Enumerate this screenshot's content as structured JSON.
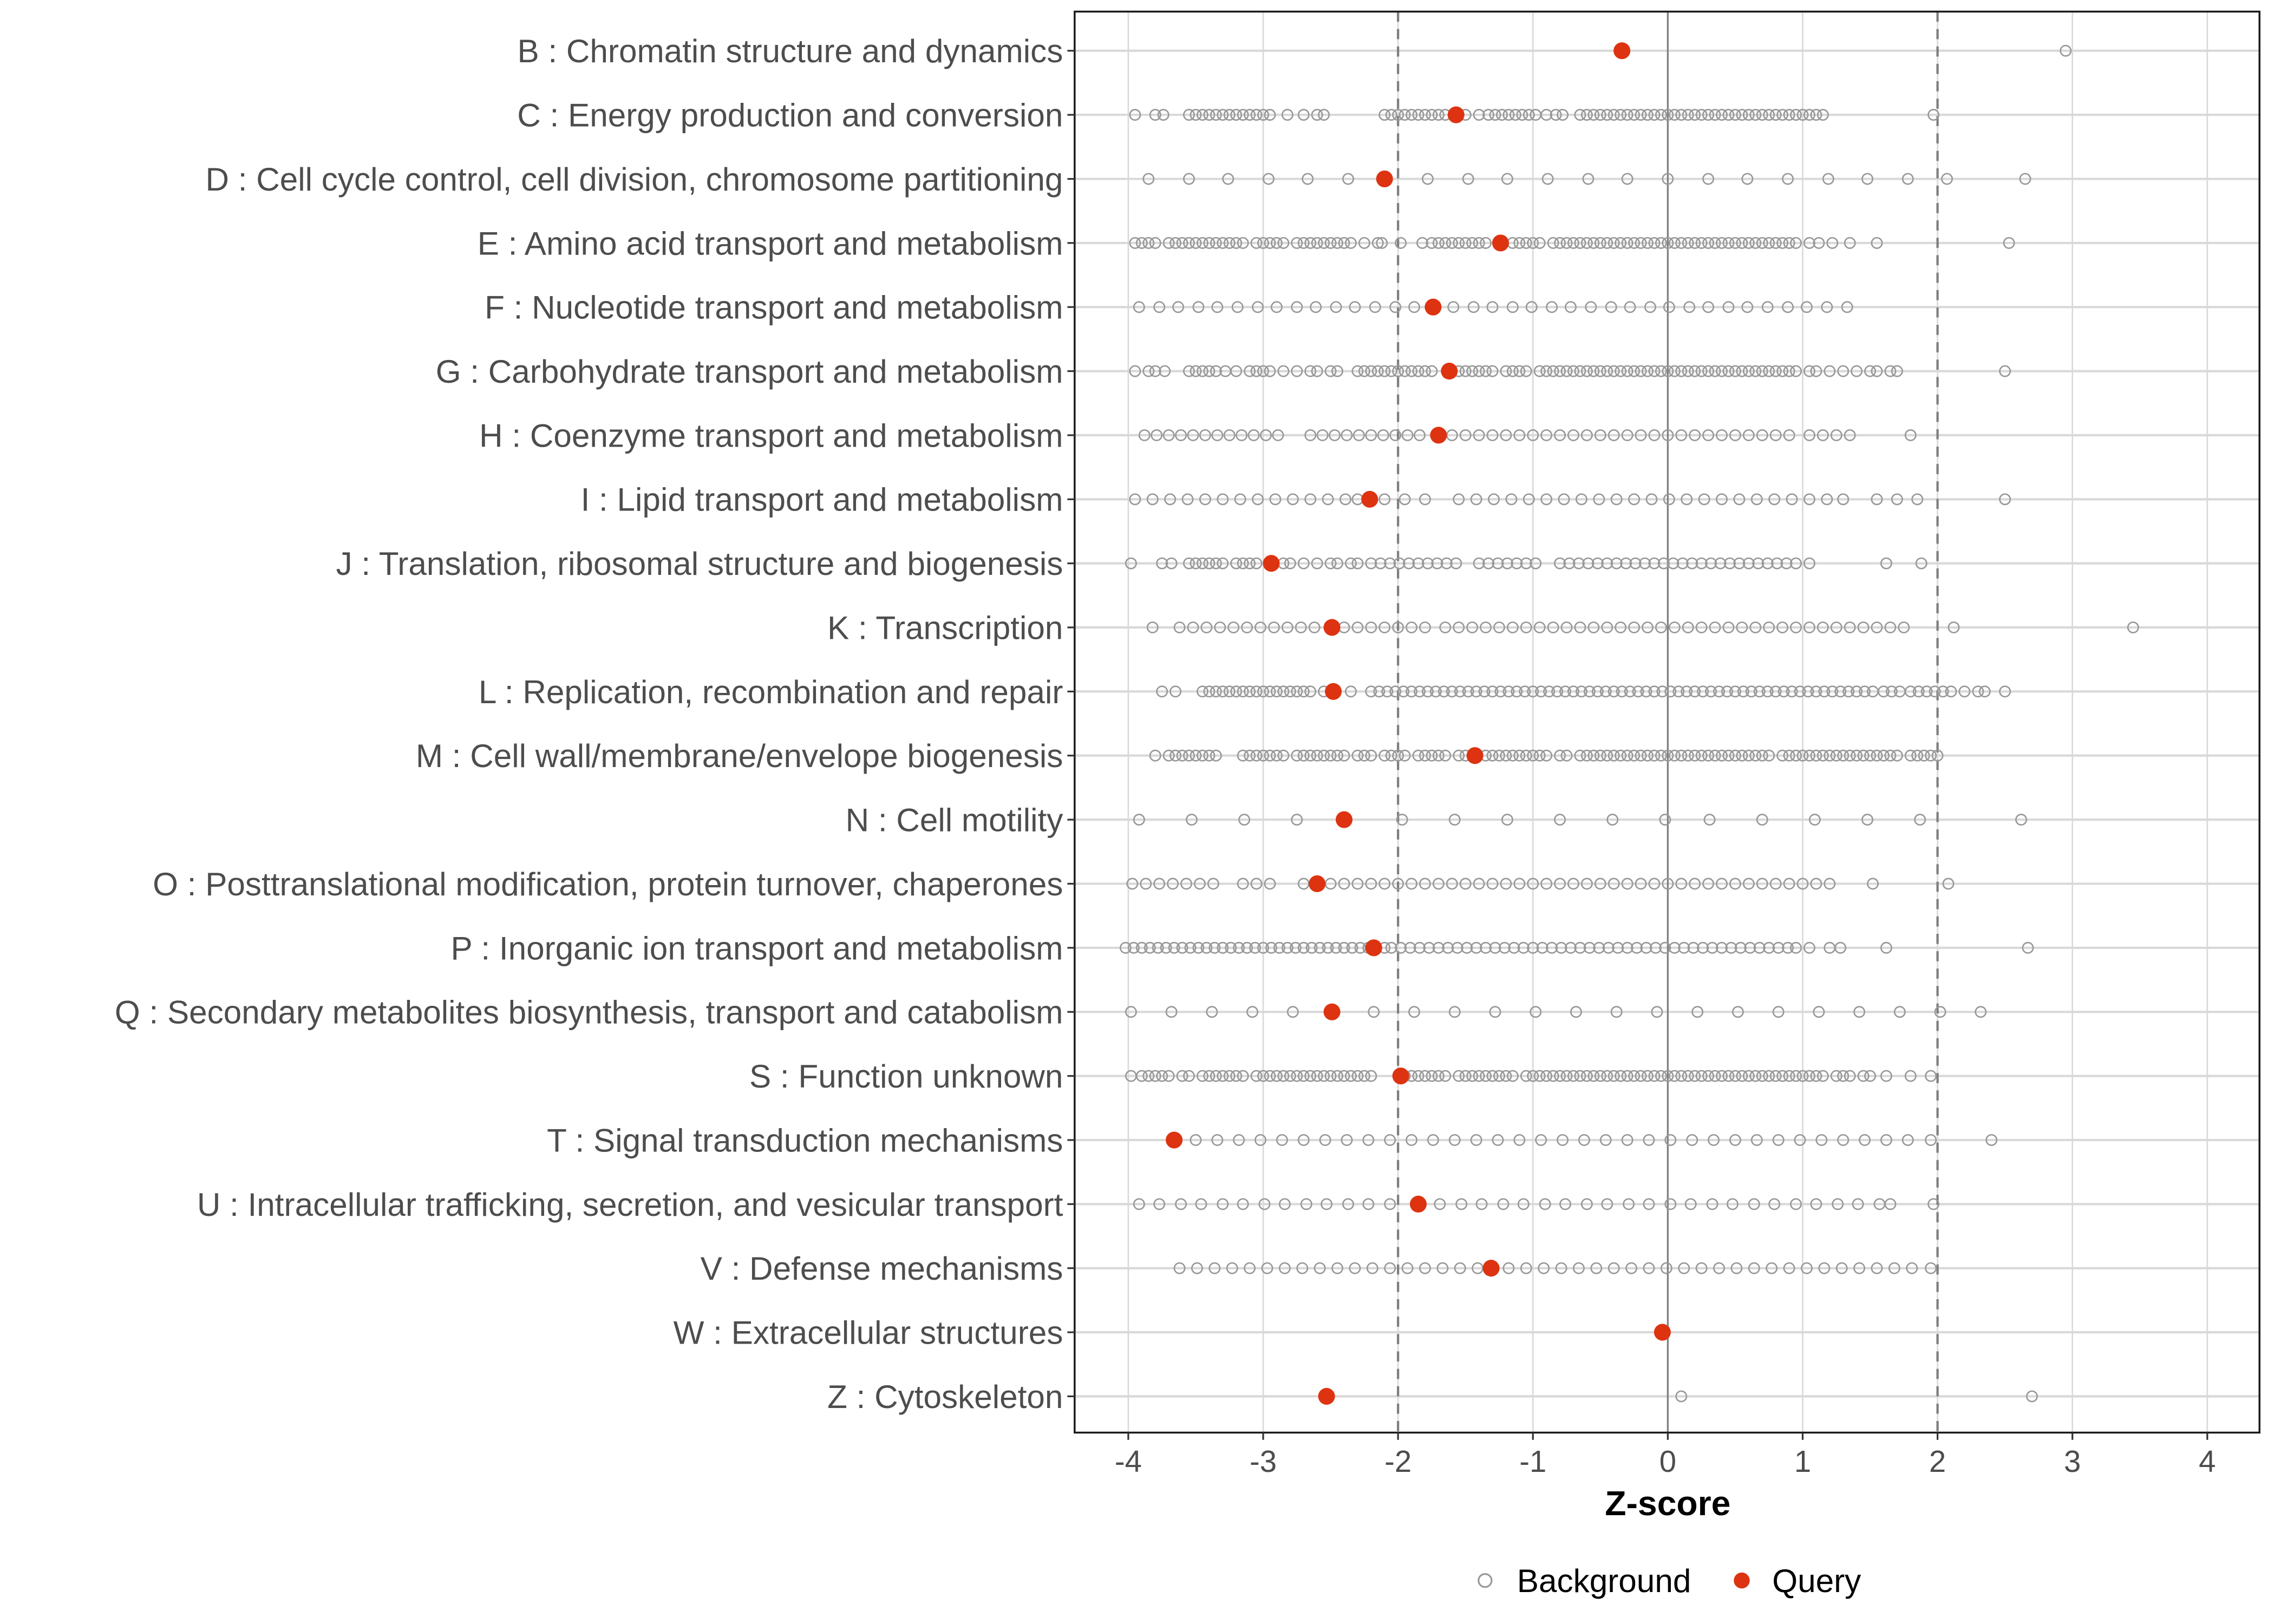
{
  "chart_data": {
    "type": "scatter",
    "title": "",
    "xlabel": "Z-score",
    "ylabel": "",
    "xlim": [
      -4.4,
      4.4
    ],
    "xticks": [
      -4,
      -3,
      -2,
      -1,
      0,
      1,
      2,
      3,
      4
    ],
    "xtick_labels": [
      "-4",
      "-3",
      "-2",
      "-1",
      "0",
      "1",
      "2",
      "3",
      "4"
    ],
    "reference_lines": {
      "solid": [
        0
      ],
      "dashed": [
        -2,
        2
      ]
    },
    "grid": true,
    "legend": {
      "position": "bottom",
      "entries": [
        "Background",
        "Query"
      ]
    },
    "colors": {
      "background": "#999999",
      "query": "#dd3311",
      "grid": "#d9d9d9",
      "reference": "#7f7f7f"
    },
    "categories": [
      "B : Chromatin structure and dynamics",
      "C : Energy production and conversion",
      "D : Cell cycle control, cell division, chromosome partitioning",
      "E : Amino acid transport and metabolism",
      "F : Nucleotide transport and metabolism",
      "G : Carbohydrate transport and metabolism",
      "H : Coenzyme transport and metabolism",
      "I : Lipid transport and metabolism",
      "J : Translation, ribosomal structure and biogenesis",
      "K : Transcription",
      "L : Replication, recombination and repair",
      "M : Cell wall/membrane/envelope biogenesis",
      "N : Cell motility",
      "O : Posttranslational modification, protein turnover, chaperones",
      "P : Inorganic ion transport and metabolism",
      "Q : Secondary metabolites biosynthesis, transport and catabolism",
      "S : Function unknown",
      "T : Signal transduction mechanisms",
      "U : Intracellular trafficking, secretion, and vesicular transport",
      "V : Defense mechanisms",
      "W : Extracellular structures",
      "Z : Cytoskeleton"
    ],
    "query": [
      -0.34,
      -1.57,
      -2.1,
      -1.24,
      -1.74,
      -1.62,
      -1.7,
      -2.21,
      -2.94,
      -2.49,
      -2.48,
      -1.43,
      -2.4,
      -2.6,
      -2.18,
      -2.49,
      -1.98,
      -3.66,
      -1.85,
      -1.31,
      -0.04,
      -2.53
    ],
    "background": [
      [
        2.95
      ],
      [
        -3.95,
        -3.8,
        -3.74,
        -3.55,
        -3.5,
        -3.45,
        -3.4,
        -3.35,
        -3.3,
        -3.25,
        -3.2,
        -3.15,
        -3.1,
        -3.05,
        -3.0,
        -2.95,
        -2.82,
        -2.7,
        -2.6,
        -2.55,
        -2.1,
        -2.05,
        -2.0,
        -1.95,
        -1.9,
        -1.85,
        -1.8,
        -1.75,
        -1.7,
        -1.65,
        -1.5,
        -1.4,
        -1.33,
        -1.28,
        -1.23,
        -1.18,
        -1.13,
        -1.08,
        -1.03,
        -0.98,
        -0.9,
        -0.83,
        -0.78,
        -0.65,
        -0.6,
        -0.55,
        -0.5,
        -0.45,
        -0.4,
        -0.35,
        -0.3,
        -0.25,
        -0.2,
        -0.15,
        -0.1,
        -0.05,
        0,
        0.05,
        0.1,
        0.15,
        0.2,
        0.25,
        0.3,
        0.35,
        0.4,
        0.45,
        0.5,
        0.55,
        0.6,
        0.65,
        0.7,
        0.75,
        0.8,
        0.85,
        0.9,
        0.95,
        1.0,
        1.05,
        1.1,
        1.15,
        1.97
      ],
      [
        -3.85,
        -3.55,
        -3.26,
        -2.96,
        -2.67,
        -2.37,
        -1.78,
        -1.48,
        -1.19,
        -0.89,
        -0.59,
        -0.3,
        0,
        0.3,
        0.59,
        0.89,
        1.19,
        1.48,
        1.78,
        2.07,
        2.65
      ],
      [
        -3.95,
        -3.9,
        -3.85,
        -3.8,
        -3.7,
        -3.65,
        -3.6,
        -3.55,
        -3.5,
        -3.45,
        -3.4,
        -3.35,
        -3.3,
        -3.25,
        -3.2,
        -3.15,
        -3.05,
        -3.0,
        -2.95,
        -2.9,
        -2.85,
        -2.75,
        -2.7,
        -2.65,
        -2.6,
        -2.55,
        -2.5,
        -2.45,
        -2.4,
        -2.35,
        -2.25,
        -2.15,
        -2.12,
        -1.98,
        -1.82,
        -1.75,
        -1.7,
        -1.65,
        -1.6,
        -1.55,
        -1.5,
        -1.45,
        -1.4,
        -1.35,
        -1.15,
        -1.1,
        -1.05,
        -1.0,
        -0.95,
        -0.85,
        -0.8,
        -0.75,
        -0.7,
        -0.65,
        -0.6,
        -0.55,
        -0.5,
        -0.45,
        -0.4,
        -0.35,
        -0.3,
        -0.25,
        -0.2,
        -0.15,
        -0.1,
        -0.05,
        0,
        0.05,
        0.1,
        0.15,
        0.2,
        0.25,
        0.3,
        0.35,
        0.4,
        0.45,
        0.5,
        0.55,
        0.6,
        0.65,
        0.7,
        0.75,
        0.8,
        0.85,
        0.9,
        0.95,
        1.05,
        1.12,
        1.22,
        1.35,
        1.55,
        2.53
      ],
      [
        -3.92,
        -3.77,
        -3.63,
        -3.48,
        -3.34,
        -3.19,
        -3.04,
        -2.9,
        -2.75,
        -2.61,
        -2.46,
        -2.32,
        -2.17,
        -2.02,
        -1.88,
        -1.59,
        -1.44,
        -1.3,
        -1.15,
        -1.01,
        -0.86,
        -0.72,
        -0.57,
        -0.42,
        -0.28,
        -0.13,
        0.01,
        0.16,
        0.3,
        0.45,
        0.59,
        0.74,
        0.89,
        1.03,
        1.18,
        1.33
      ],
      [
        -3.95,
        -3.85,
        -3.8,
        -3.73,
        -3.55,
        -3.5,
        -3.45,
        -3.4,
        -3.35,
        -3.28,
        -3.2,
        -3.1,
        -3.05,
        -3.0,
        -2.95,
        -2.85,
        -2.75,
        -2.65,
        -2.6,
        -2.5,
        -2.45,
        -2.3,
        -2.25,
        -2.2,
        -2.15,
        -2.1,
        -2.05,
        -2.0,
        -1.95,
        -1.9,
        -1.85,
        -1.8,
        -1.75,
        -1.55,
        -1.5,
        -1.45,
        -1.4,
        -1.35,
        -1.3,
        -1.2,
        -1.15,
        -1.1,
        -1.05,
        -0.95,
        -0.9,
        -0.85,
        -0.8,
        -0.75,
        -0.7,
        -0.65,
        -0.6,
        -0.55,
        -0.5,
        -0.45,
        -0.4,
        -0.35,
        -0.3,
        -0.25,
        -0.2,
        -0.15,
        -0.1,
        -0.05,
        0,
        0.05,
        0.1,
        0.15,
        0.2,
        0.25,
        0.3,
        0.35,
        0.4,
        0.45,
        0.5,
        0.55,
        0.6,
        0.65,
        0.7,
        0.75,
        0.8,
        0.85,
        0.9,
        0.95,
        1.05,
        1.1,
        1.2,
        1.3,
        1.4,
        1.5,
        1.55,
        1.65,
        1.7,
        2.5
      ],
      [
        -3.88,
        -3.79,
        -3.7,
        -3.61,
        -3.52,
        -3.43,
        -3.34,
        -3.25,
        -3.16,
        -3.07,
        -2.98,
        -2.89,
        -2.65,
        -2.56,
        -2.47,
        -2.38,
        -2.29,
        -2.2,
        -2.11,
        -2.02,
        -1.93,
        -1.84,
        -1.6,
        -1.5,
        -1.4,
        -1.3,
        -1.2,
        -1.1,
        -1.0,
        -0.9,
        -0.8,
        -0.7,
        -0.6,
        -0.5,
        -0.4,
        -0.3,
        -0.2,
        -0.1,
        0,
        0.1,
        0.2,
        0.3,
        0.4,
        0.5,
        0.6,
        0.7,
        0.8,
        0.9,
        1.05,
        1.15,
        1.25,
        1.35,
        1.8
      ],
      [
        -3.95,
        -3.82,
        -3.69,
        -3.56,
        -3.43,
        -3.3,
        -3.17,
        -3.04,
        -2.91,
        -2.78,
        -2.65,
        -2.52,
        -2.39,
        -2.3,
        -2.1,
        -1.95,
        -1.8,
        -1.55,
        -1.42,
        -1.29,
        -1.16,
        -1.03,
        -0.9,
        -0.77,
        -0.64,
        -0.51,
        -0.38,
        -0.25,
        -0.12,
        0.01,
        0.14,
        0.27,
        0.4,
        0.53,
        0.66,
        0.79,
        0.92,
        1.05,
        1.18,
        1.3,
        1.55,
        1.7,
        1.85,
        2.5
      ],
      [
        -3.98,
        -3.75,
        -3.68,
        -3.55,
        -3.5,
        -3.45,
        -3.4,
        -3.35,
        -3.3,
        -3.2,
        -3.15,
        -3.1,
        -3.05,
        -2.85,
        -2.8,
        -2.7,
        -2.6,
        -2.5,
        -2.45,
        -2.35,
        -2.3,
        -2.2,
        -2.13,
        -2.06,
        -1.99,
        -1.92,
        -1.85,
        -1.78,
        -1.71,
        -1.64,
        -1.57,
        -1.4,
        -1.33,
        -1.26,
        -1.19,
        -1.12,
        -1.05,
        -0.98,
        -0.8,
        -0.73,
        -0.66,
        -0.59,
        -0.52,
        -0.45,
        -0.38,
        -0.31,
        -0.24,
        -0.17,
        -0.1,
        -0.03,
        0.04,
        0.11,
        0.18,
        0.25,
        0.32,
        0.39,
        0.46,
        0.53,
        0.6,
        0.67,
        0.74,
        0.81,
        0.88,
        0.95,
        1.05,
        1.62,
        1.88
      ],
      [
        -3.82,
        -3.62,
        -3.52,
        -3.42,
        -3.32,
        -3.22,
        -3.12,
        -3.02,
        -2.92,
        -2.82,
        -2.72,
        -2.62,
        -2.4,
        -2.3,
        -2.2,
        -2.1,
        -2.0,
        -1.9,
        -1.8,
        -1.65,
        -1.55,
        -1.45,
        -1.35,
        -1.25,
        -1.15,
        -1.05,
        -0.95,
        -0.85,
        -0.75,
        -0.65,
        -0.55,
        -0.45,
        -0.35,
        -0.25,
        -0.15,
        -0.05,
        0.05,
        0.15,
        0.25,
        0.35,
        0.45,
        0.55,
        0.65,
        0.75,
        0.85,
        0.95,
        1.05,
        1.15,
        1.25,
        1.35,
        1.45,
        1.55,
        1.65,
        1.75,
        2.12,
        3.45
      ],
      [
        -3.75,
        -3.65,
        -3.45,
        -3.4,
        -3.35,
        -3.3,
        -3.25,
        -3.2,
        -3.15,
        -3.1,
        -3.05,
        -3.0,
        -2.95,
        -2.9,
        -2.85,
        -2.8,
        -2.75,
        -2.7,
        -2.65,
        -2.55,
        -2.35,
        -2.2,
        -2.14,
        -2.08,
        -2.02,
        -1.96,
        -1.9,
        -1.84,
        -1.78,
        -1.72,
        -1.66,
        -1.6,
        -1.54,
        -1.48,
        -1.42,
        -1.36,
        -1.3,
        -1.24,
        -1.18,
        -1.12,
        -1.06,
        -1.0,
        -0.94,
        -0.88,
        -0.82,
        -0.76,
        -0.7,
        -0.64,
        -0.58,
        -0.52,
        -0.46,
        -0.4,
        -0.34,
        -0.28,
        -0.22,
        -0.16,
        -0.1,
        -0.04,
        0.02,
        0.08,
        0.14,
        0.2,
        0.26,
        0.32,
        0.38,
        0.44,
        0.5,
        0.56,
        0.62,
        0.68,
        0.74,
        0.8,
        0.86,
        0.92,
        0.98,
        1.04,
        1.1,
        1.16,
        1.22,
        1.28,
        1.34,
        1.4,
        1.46,
        1.52,
        1.6,
        1.66,
        1.72,
        1.8,
        1.86,
        1.92,
        1.98,
        2.04,
        2.1,
        2.2,
        2.3,
        2.35,
        2.5
      ],
      [
        -3.8,
        -3.7,
        -3.65,
        -3.6,
        -3.55,
        -3.5,
        -3.45,
        -3.4,
        -3.35,
        -3.15,
        -3.1,
        -3.05,
        -3.0,
        -2.95,
        -2.9,
        -2.85,
        -2.75,
        -2.7,
        -2.65,
        -2.6,
        -2.55,
        -2.5,
        -2.45,
        -2.4,
        -2.3,
        -2.25,
        -2.2,
        -2.1,
        -2.05,
        -2.0,
        -1.95,
        -1.85,
        -1.8,
        -1.75,
        -1.7,
        -1.65,
        -1.55,
        -1.5,
        -1.35,
        -1.3,
        -1.25,
        -1.2,
        -1.15,
        -1.1,
        -1.05,
        -1.0,
        -0.95,
        -0.9,
        -0.8,
        -0.75,
        -0.65,
        -0.6,
        -0.55,
        -0.5,
        -0.45,
        -0.4,
        -0.35,
        -0.3,
        -0.25,
        -0.2,
        -0.15,
        -0.1,
        -0.05,
        0,
        0.05,
        0.1,
        0.15,
        0.2,
        0.25,
        0.3,
        0.35,
        0.4,
        0.45,
        0.5,
        0.55,
        0.6,
        0.65,
        0.7,
        0.75,
        0.85,
        0.9,
        0.95,
        1.0,
        1.05,
        1.1,
        1.15,
        1.2,
        1.25,
        1.3,
        1.35,
        1.4,
        1.45,
        1.5,
        1.55,
        1.6,
        1.65,
        1.7,
        1.8,
        1.85,
        1.9,
        1.95,
        2.0
      ],
      [
        -3.92,
        -3.53,
        -3.14,
        -2.75,
        -1.97,
        -1.58,
        -1.19,
        -0.8,
        -0.41,
        -0.02,
        0.31,
        0.7,
        1.09,
        1.48,
        1.87,
        2.62
      ],
      [
        -3.97,
        -3.87,
        -3.77,
        -3.67,
        -3.57,
        -3.47,
        -3.37,
        -3.15,
        -3.05,
        -2.95,
        -2.7,
        -2.5,
        -2.4,
        -2.3,
        -2.2,
        -2.1,
        -2.0,
        -1.9,
        -1.8,
        -1.7,
        -1.6,
        -1.5,
        -1.4,
        -1.3,
        -1.2,
        -1.1,
        -1.0,
        -0.9,
        -0.8,
        -0.7,
        -0.6,
        -0.5,
        -0.4,
        -0.3,
        -0.2,
        -0.1,
        0,
        0.1,
        0.2,
        0.3,
        0.4,
        0.5,
        0.6,
        0.7,
        0.8,
        0.9,
        1.0,
        1.1,
        1.2,
        1.52,
        2.08
      ],
      [
        -4.02,
        -3.96,
        -3.9,
        -3.84,
        -3.78,
        -3.72,
        -3.66,
        -3.6,
        -3.54,
        -3.48,
        -3.42,
        -3.36,
        -3.3,
        -3.24,
        -3.18,
        -3.12,
        -3.06,
        -3.0,
        -2.94,
        -2.88,
        -2.82,
        -2.76,
        -2.7,
        -2.64,
        -2.58,
        -2.52,
        -2.46,
        -2.4,
        -2.34,
        -2.28,
        -2.22,
        -2.1,
        -2.05,
        -1.98,
        -1.91,
        -1.84,
        -1.77,
        -1.7,
        -1.63,
        -1.56,
        -1.49,
        -1.42,
        -1.35,
        -1.28,
        -1.21,
        -1.14,
        -1.07,
        -1.0,
        -0.93,
        -0.86,
        -0.79,
        -0.72,
        -0.65,
        -0.58,
        -0.51,
        -0.44,
        -0.37,
        -0.3,
        -0.23,
        -0.16,
        -0.09,
        -0.02,
        0.05,
        0.12,
        0.19,
        0.26,
        0.33,
        0.4,
        0.47,
        0.54,
        0.61,
        0.68,
        0.75,
        0.82,
        0.89,
        0.95,
        1.05,
        1.2,
        1.28,
        1.62,
        2.67
      ],
      [
        -3.98,
        -3.68,
        -3.38,
        -3.08,
        -2.78,
        -2.18,
        -1.88,
        -1.58,
        -1.28,
        -0.98,
        -0.68,
        -0.38,
        -0.08,
        0.22,
        0.52,
        0.82,
        1.12,
        1.42,
        1.72,
        2.02,
        2.32
      ],
      [
        -3.98,
        -3.9,
        -3.85,
        -3.8,
        -3.75,
        -3.7,
        -3.6,
        -3.55,
        -3.45,
        -3.4,
        -3.35,
        -3.3,
        -3.25,
        -3.2,
        -3.15,
        -3.05,
        -3.0,
        -2.95,
        -2.9,
        -2.85,
        -2.8,
        -2.75,
        -2.7,
        -2.65,
        -2.6,
        -2.55,
        -2.5,
        -2.45,
        -2.4,
        -2.35,
        -2.3,
        -2.25,
        -2.2,
        -1.95,
        -1.9,
        -1.85,
        -1.8,
        -1.75,
        -1.7,
        -1.65,
        -1.55,
        -1.5,
        -1.45,
        -1.4,
        -1.35,
        -1.3,
        -1.25,
        -1.2,
        -1.15,
        -1.05,
        -1.0,
        -0.95,
        -0.9,
        -0.85,
        -0.8,
        -0.75,
        -0.7,
        -0.65,
        -0.6,
        -0.55,
        -0.5,
        -0.45,
        -0.4,
        -0.35,
        -0.3,
        -0.25,
        -0.2,
        -0.15,
        -0.1,
        -0.05,
        0,
        0.05,
        0.1,
        0.15,
        0.2,
        0.25,
        0.3,
        0.35,
        0.4,
        0.45,
        0.5,
        0.55,
        0.6,
        0.65,
        0.7,
        0.75,
        0.8,
        0.85,
        0.9,
        0.95,
        1.0,
        1.05,
        1.1,
        1.15,
        1.25,
        1.3,
        1.35,
        1.45,
        1.5,
        1.62,
        1.8,
        1.95
      ],
      [
        -3.5,
        -3.34,
        -3.18,
        -3.02,
        -2.86,
        -2.7,
        -2.54,
        -2.38,
        -2.22,
        -2.06,
        -1.9,
        -1.74,
        -1.58,
        -1.42,
        -1.26,
        -1.1,
        -0.94,
        -0.78,
        -0.62,
        -0.46,
        -0.3,
        -0.14,
        0.02,
        0.18,
        0.34,
        0.5,
        0.66,
        0.82,
        0.98,
        1.14,
        1.3,
        1.46,
        1.62,
        1.78,
        1.95,
        2.4
      ],
      [
        -3.92,
        -3.77,
        -3.61,
        -3.46,
        -3.3,
        -3.15,
        -2.99,
        -2.84,
        -2.68,
        -2.53,
        -2.37,
        -2.22,
        -2.06,
        -1.69,
        -1.53,
        -1.38,
        -1.22,
        -1.07,
        -0.91,
        -0.76,
        -0.6,
        -0.45,
        -0.29,
        -0.14,
        0.02,
        0.17,
        0.33,
        0.48,
        0.64,
        0.79,
        0.95,
        1.1,
        1.26,
        1.41,
        1.57,
        1.65,
        1.97
      ],
      [
        -3.62,
        -3.49,
        -3.36,
        -3.23,
        -3.1,
        -2.97,
        -2.84,
        -2.71,
        -2.58,
        -2.45,
        -2.32,
        -2.19,
        -2.06,
        -1.93,
        -1.8,
        -1.67,
        -1.54,
        -1.41,
        -1.18,
        -1.05,
        -0.92,
        -0.79,
        -0.66,
        -0.53,
        -0.4,
        -0.27,
        -0.14,
        -0.01,
        0.12,
        0.25,
        0.38,
        0.51,
        0.64,
        0.77,
        0.9,
        1.03,
        1.16,
        1.29,
        1.42,
        1.55,
        1.68,
        1.81,
        1.95
      ],
      [],
      [
        0.1,
        2.7
      ]
    ]
  }
}
